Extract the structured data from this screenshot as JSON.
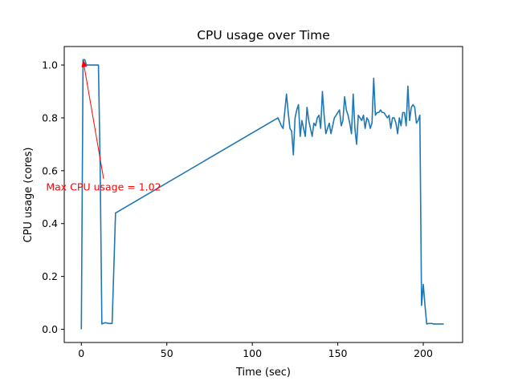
{
  "chart_data": {
    "type": "line",
    "title": "CPU usage over Time",
    "xlabel": "Time (sec)",
    "ylabel": "CPU usage (cores)",
    "xlim": [
      -10,
      223
    ],
    "ylim": [
      -0.05,
      1.07
    ],
    "xticks": [
      0,
      50,
      100,
      150,
      200
    ],
    "yticks": [
      0.0,
      0.2,
      0.4,
      0.6,
      0.8,
      1.0
    ],
    "xtick_labels": [
      "0",
      "50",
      "100",
      "150",
      "200"
    ],
    "ytick_labels": [
      "0.0",
      "0.2",
      "0.4",
      "0.6",
      "0.8",
      "1.0"
    ],
    "grid": false,
    "series": [
      {
        "name": "CPU usage",
        "color": "#1f77b4",
        "x": [
          0,
          1,
          2,
          3,
          4,
          5,
          6,
          7,
          8,
          9,
          10,
          11,
          12,
          14,
          16,
          18,
          20,
          115,
          117,
          118,
          120,
          121,
          122,
          123,
          124,
          125,
          126,
          127,
          128,
          129,
          130,
          131,
          132,
          133,
          134,
          135,
          136,
          137,
          138,
          139,
          140,
          141,
          142,
          143,
          144,
          145,
          146,
          147,
          148,
          149,
          150,
          151,
          152,
          153,
          154,
          155,
          156,
          157,
          158,
          159,
          160,
          161,
          162,
          163,
          164,
          165,
          166,
          167,
          168,
          169,
          170,
          171,
          172,
          173,
          174,
          175,
          176,
          177,
          178,
          179,
          180,
          181,
          182,
          183,
          184,
          185,
          186,
          187,
          188,
          189,
          190,
          191,
          192,
          193,
          194,
          195,
          196,
          197,
          198,
          199,
          200,
          201,
          202,
          203,
          204,
          205,
          206,
          207,
          208,
          209,
          210,
          211,
          212
        ],
        "y": [
          0.0,
          1.02,
          1.02,
          1.0,
          1.0,
          1.0,
          1.0,
          1.0,
          1.0,
          1.0,
          1.0,
          0.62,
          0.02,
          0.025,
          0.022,
          0.022,
          0.44,
          0.8,
          0.77,
          0.76,
          0.89,
          0.82,
          0.76,
          0.75,
          0.66,
          0.8,
          0.83,
          0.85,
          0.73,
          0.79,
          0.76,
          0.73,
          0.84,
          0.79,
          0.76,
          0.73,
          0.78,
          0.77,
          0.8,
          0.81,
          0.76,
          0.9,
          0.81,
          0.74,
          0.76,
          0.78,
          0.74,
          0.77,
          0.8,
          0.81,
          0.82,
          0.83,
          0.77,
          0.79,
          0.88,
          0.83,
          0.81,
          0.78,
          0.74,
          0.89,
          0.76,
          0.7,
          0.81,
          0.8,
          0.79,
          0.81,
          0.76,
          0.8,
          0.79,
          0.76,
          0.78,
          0.95,
          0.81,
          0.82,
          0.82,
          0.83,
          0.82,
          0.82,
          0.81,
          0.8,
          0.81,
          0.76,
          0.8,
          0.8,
          0.78,
          0.74,
          0.8,
          0.77,
          0.82,
          0.82,
          0.77,
          0.92,
          0.79,
          0.84,
          0.85,
          0.84,
          0.78,
          0.79,
          0.81,
          0.09,
          0.17,
          0.09,
          0.02,
          0.022,
          0.022,
          0.022,
          0.02,
          0.02,
          0.02,
          0.02,
          0.02,
          0.02,
          0.02
        ]
      }
    ],
    "annotations": [
      {
        "text": "Max CPU usage = 1.02",
        "xy": [
          1,
          1.02
        ],
        "xytext": [
          13,
          0.57
        ],
        "color": "#ff0000"
      }
    ]
  }
}
